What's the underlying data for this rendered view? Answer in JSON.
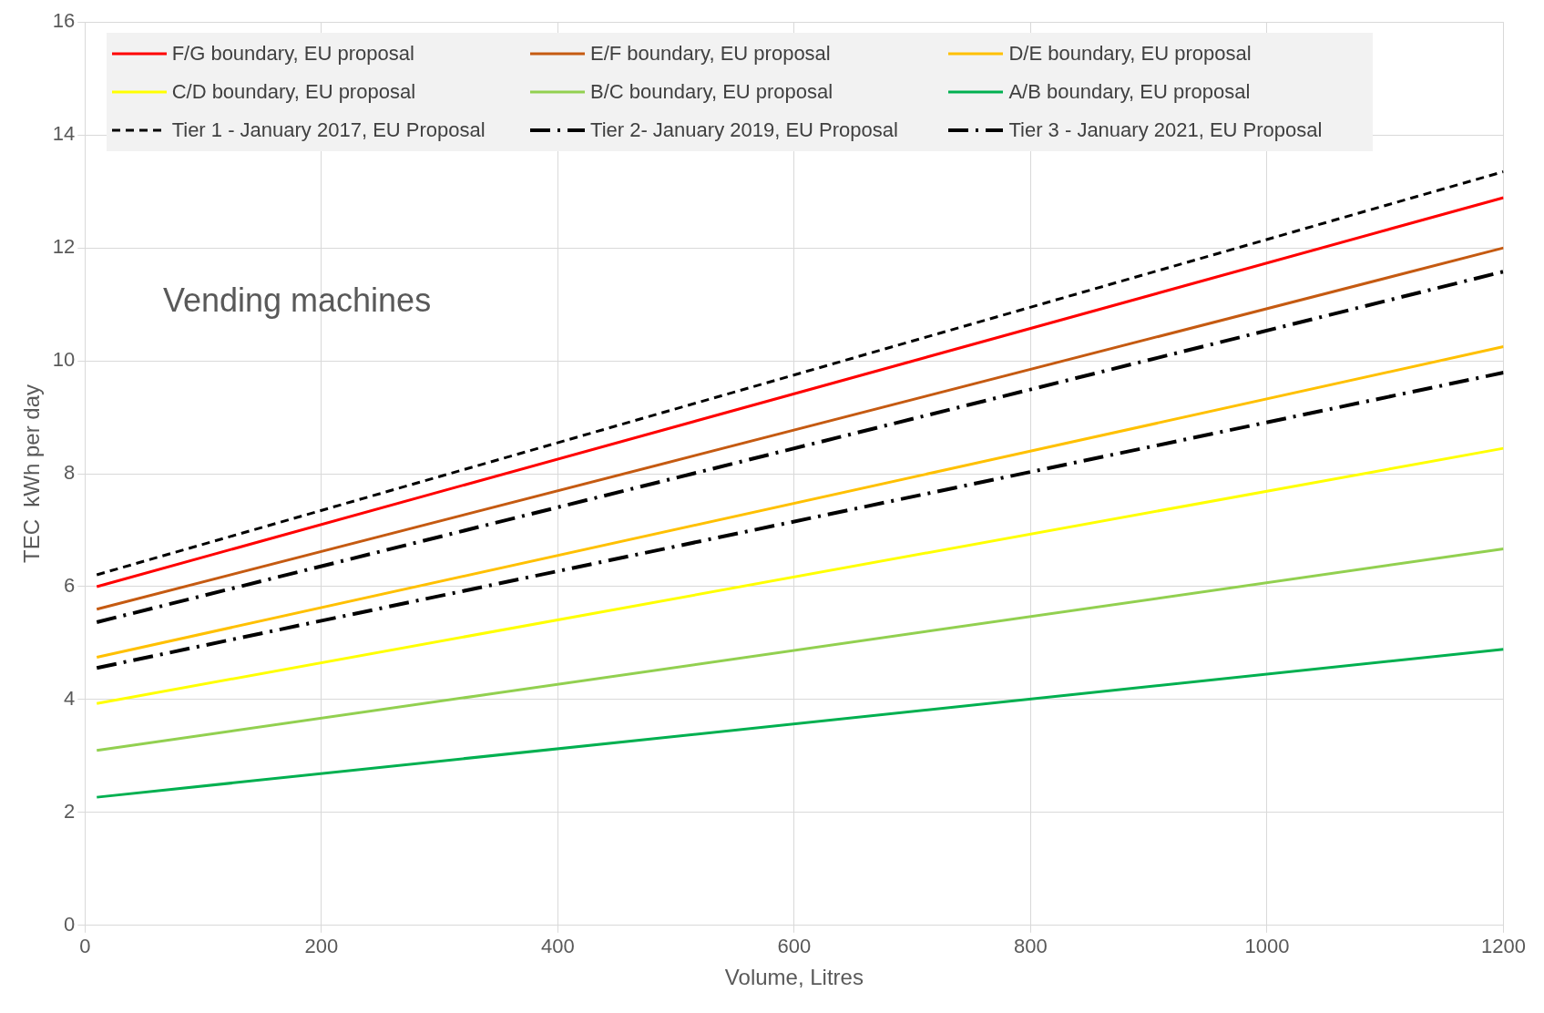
{
  "chart_data": {
    "type": "line",
    "title": "Vending machines",
    "xlabel": "Volume, Litres",
    "ylabel": "TEC  kWh per day",
    "xlim": [
      0,
      1200
    ],
    "xticks": [
      0,
      200,
      400,
      600,
      800,
      1000,
      1200
    ],
    "ylim": [
      0,
      16
    ],
    "yticks": [
      0,
      2,
      4,
      6,
      8,
      10,
      12,
      14,
      16
    ],
    "grid": true,
    "legend": "top",
    "marker": "none",
    "x": [
      10,
      1200
    ],
    "series": [
      {
        "name": "F/G boundary, EU proposal",
        "color": "#ff0000",
        "values": [
          6.0,
          12.89
        ],
        "line_style": "solid"
      },
      {
        "name": "E/F boundary, EU proposal",
        "color": "#c55a11",
        "values": [
          5.6,
          12.0
        ],
        "line_style": "solid"
      },
      {
        "name": "D/E boundary, EU proposal",
        "color": "#ffc000",
        "values": [
          4.75,
          10.25
        ],
        "line_style": "solid"
      },
      {
        "name": "C/D boundary, EU proposal",
        "color": "#ffff00",
        "values": [
          3.93,
          8.45
        ],
        "line_style": "solid"
      },
      {
        "name": "B/C boundary, EU proposal",
        "color": "#92d050",
        "values": [
          3.1,
          6.67
        ],
        "line_style": "solid"
      },
      {
        "name": "A/B boundary, EU proposal",
        "color": "#00b050",
        "values": [
          2.27,
          4.89
        ],
        "line_style": "solid"
      },
      {
        "name": "Tier 1 - January 2017, EU Proposal",
        "color": "#000000",
        "values": [
          6.21,
          13.35
        ],
        "line_style": "dashed"
      },
      {
        "name": "Tier 2- January 2019, EU Proposal",
        "color": "#000000",
        "values": [
          5.37,
          11.58
        ],
        "line_style": "dashdot"
      },
      {
        "name": "Tier 3 - January 2021, EU Proposal",
        "color": "#000000",
        "values": [
          4.56,
          9.79
        ],
        "line_style": "dashdot"
      }
    ]
  }
}
